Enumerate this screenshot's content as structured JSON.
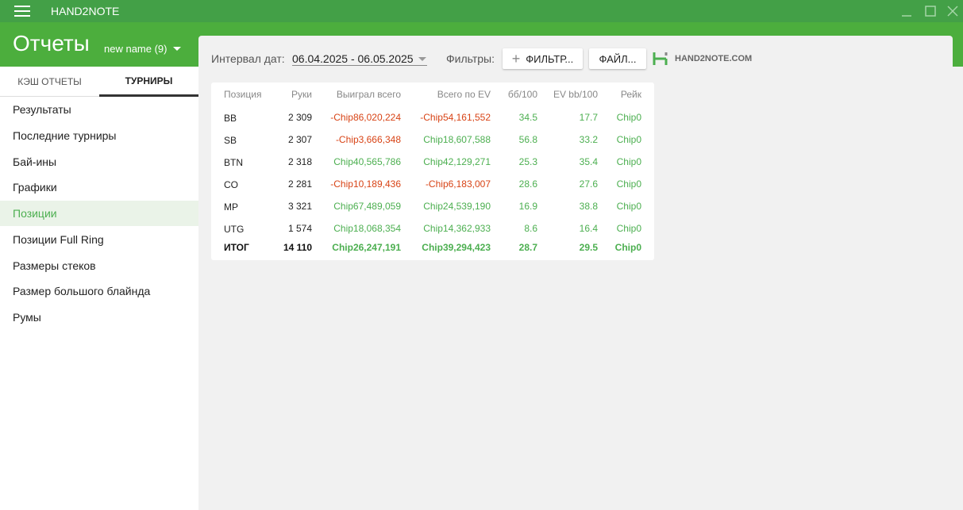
{
  "titlebar": {
    "app": "HAND2NOTE"
  },
  "header": {
    "title": "Отчеты",
    "profile": "new name (9)"
  },
  "tabs": {
    "items": [
      "КЭШ ОТЧЕТЫ",
      "ТУРНИРЫ"
    ],
    "active": 1
  },
  "menu": {
    "items": [
      "Результаты",
      "Последние турниры",
      "Бай-ины",
      "Графики",
      "Позиции",
      "Позиции Full Ring",
      "Размеры стеков",
      "Размер большого блайнда",
      "Румы"
    ],
    "active": 4
  },
  "toolbar": {
    "interval_label": "Интервал дат:",
    "interval": "06.04.2025 - 06.05.2025",
    "filters_label": "Фильтры:",
    "filter_button": "ФИЛЬТР...",
    "file_button": "ФАЙЛ...",
    "logo": "HAND2NOTE.COM"
  },
  "table": {
    "columns": [
      "Позиция",
      "Руки",
      "Выиграл всего",
      "Всего по EV",
      "бб/100",
      "EV bb/100",
      "Рейк"
    ],
    "rows": [
      [
        "BB",
        "2 309",
        "-Chip86,020,224",
        "-Chip54,161,552",
        "34.5",
        "17.7",
        "Chip0"
      ],
      [
        "SB",
        "2 307",
        "-Chip3,666,348",
        "Chip18,607,588",
        "56.8",
        "33.2",
        "Chip0"
      ],
      [
        "BTN",
        "2 318",
        "Chip40,565,786",
        "Chip42,129,271",
        "25.3",
        "35.4",
        "Chip0"
      ],
      [
        "CO",
        "2 281",
        "-Chip10,189,436",
        "-Chip6,183,007",
        "28.6",
        "27.6",
        "Chip0"
      ],
      [
        "MP",
        "3 321",
        "Chip67,489,059",
        "Chip24,539,190",
        "16.9",
        "38.8",
        "Chip0"
      ],
      [
        "UTG",
        "1 574",
        "Chip18,068,354",
        "Chip14,362,933",
        "8.6",
        "16.4",
        "Chip0"
      ]
    ],
    "total": [
      "ИТОГ",
      "14 110",
      "Chip26,247,191",
      "Chip39,294,423",
      "28.7",
      "29.5",
      "Chip0"
    ]
  }
}
